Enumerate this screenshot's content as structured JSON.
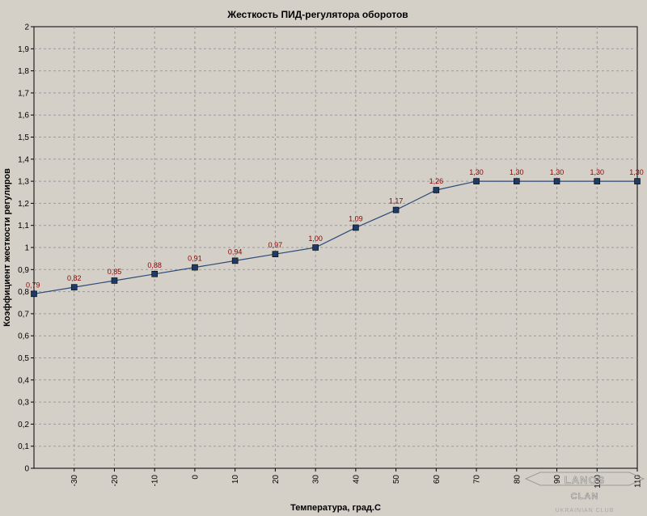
{
  "chart_data": {
    "type": "line",
    "title": "Жесткость ПИД-регулятора оборотов",
    "xlabel": "Температура, град.С",
    "ylabel": "Коэффициент жесткости регулиров",
    "xlim": [
      -40,
      110
    ],
    "ylim": [
      0,
      2
    ],
    "x_ticks": [
      "-30",
      "-20",
      "-10",
      "0",
      "10",
      "20",
      "30",
      "40",
      "50",
      "60",
      "70",
      "80",
      "90",
      "100",
      "110"
    ],
    "x_tick_values": [
      -30,
      -20,
      -10,
      0,
      10,
      20,
      30,
      40,
      50,
      60,
      70,
      80,
      90,
      100,
      110
    ],
    "y_ticks": [
      "0",
      "0,1",
      "0,2",
      "0,3",
      "0,4",
      "0,5",
      "0,6",
      "0,7",
      "0,8",
      "0,9",
      "1",
      "1,1",
      "1,2",
      "1,3",
      "1,4",
      "1,5",
      "1,6",
      "1,7",
      "1,8",
      "1,9",
      "2"
    ],
    "grid": true,
    "series": [
      {
        "x": [
          -40,
          -30,
          -20,
          -10,
          0,
          10,
          20,
          30,
          40,
          50,
          60,
          70,
          80,
          90,
          100,
          110
        ],
        "values": [
          0.79,
          0.82,
          0.85,
          0.88,
          0.91,
          0.94,
          0.97,
          1.0,
          1.09,
          1.17,
          1.26,
          1.3,
          1.3,
          1.3,
          1.3,
          1.3
        ],
        "labels": [
          "0,79",
          "0,82",
          "0,85",
          "0,88",
          "0,91",
          "0,94",
          "0,97",
          "1,00",
          "1,09",
          "1,17",
          "1,26",
          "1,30",
          "1,30",
          "1,30",
          "1,30",
          "1,30"
        ]
      }
    ],
    "colors": {
      "line": "#2b4a7a",
      "marker": "#1e3a66",
      "data_label": "#8b0000",
      "background": "#d4d0c8"
    }
  },
  "watermark": {
    "main": "LANOS",
    "clan": "CLAN",
    "sub": "UKRAINIAN CLUB"
  }
}
